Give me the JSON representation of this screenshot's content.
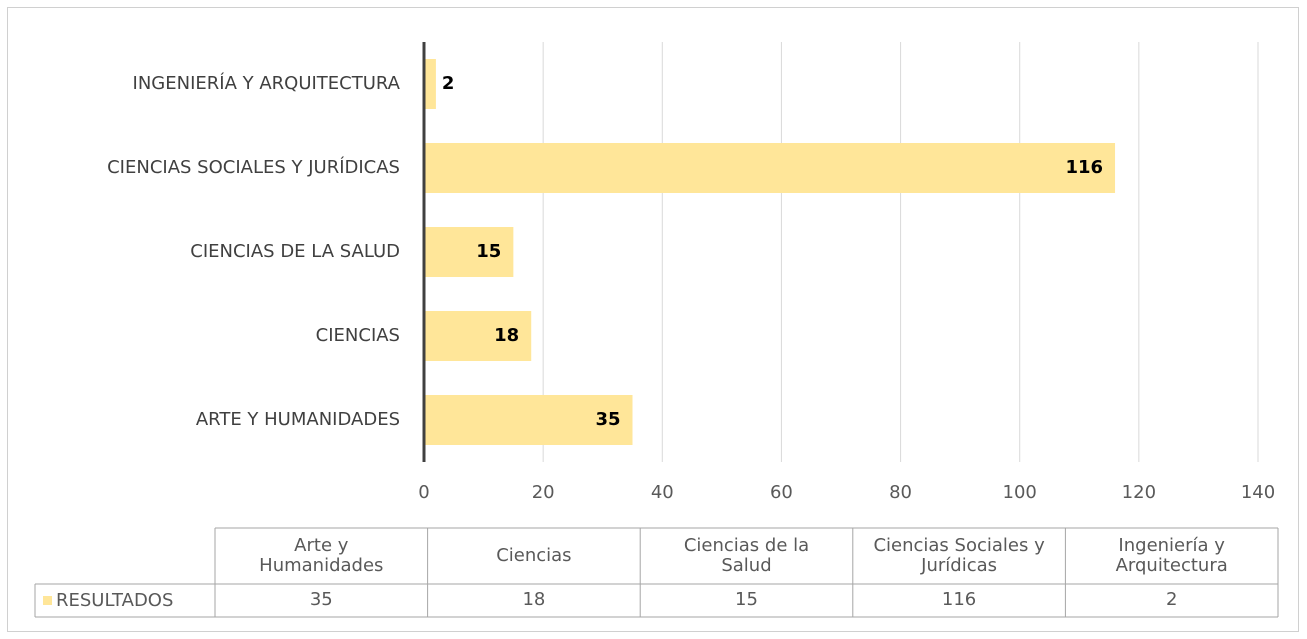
{
  "chart_data": {
    "type": "barh",
    "categories": [
      "ARTE Y HUMANIDADES",
      "CIENCIAS",
      "CIENCIAS DE LA SALUD",
      "CIENCIAS SOCIALES Y JURÍDICAS",
      "INGENIERÍA Y ARQUITECTURA"
    ],
    "table_categories": [
      "Arte y Humanidades",
      "Ciencias",
      "Ciencias de la Salud",
      "Ciencias Sociales y Jurídicas",
      "Ingeniería y Arquitectura"
    ],
    "series": [
      {
        "name": "RESULTADOS",
        "color": "#ffe699",
        "values": [
          35,
          18,
          15,
          116,
          2
        ]
      }
    ],
    "xlim": [
      0,
      140
    ],
    "xticks": [
      0,
      20,
      40,
      60,
      80,
      100,
      120,
      140
    ],
    "grid": true
  }
}
